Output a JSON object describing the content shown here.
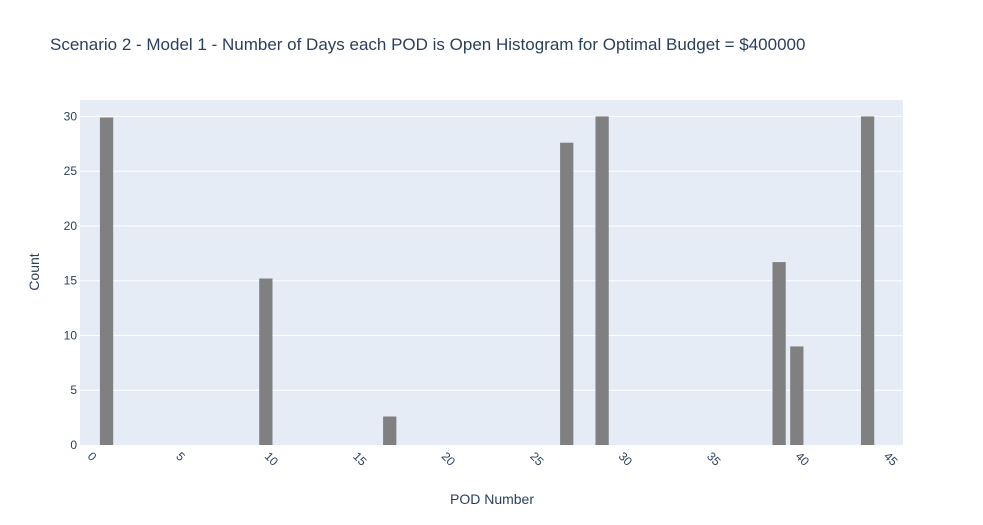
{
  "chart_data": {
    "type": "bar",
    "title": "Scenario 2 - Model 1 - Number of Days each POD is Open Histogram for Optimal Budget = $400000",
    "xlabel": "POD Number",
    "ylabel": "Count",
    "x": [
      1,
      10,
      17,
      27,
      29,
      39,
      40,
      44
    ],
    "values": [
      29.9,
      15.2,
      2.6,
      27.6,
      30,
      16.7,
      9,
      30
    ],
    "xlim": [
      -0.5,
      46
    ],
    "ylim": [
      0,
      31.5
    ],
    "xticks": [
      0,
      5,
      10,
      15,
      20,
      25,
      30,
      35,
      40,
      45
    ],
    "yticks": [
      0,
      5,
      10,
      15,
      20,
      25,
      30
    ],
    "bar_color": "#808080",
    "plot_bg": "#e5ecf6",
    "grid_color": "#ffffff",
    "grid": true,
    "legend": false
  }
}
